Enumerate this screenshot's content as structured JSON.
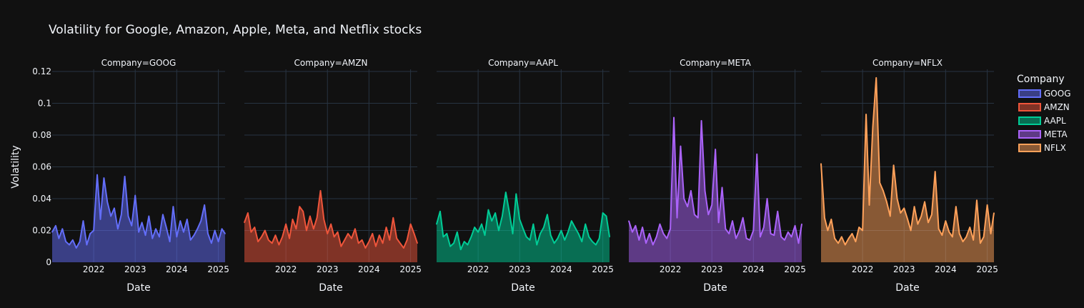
{
  "chart_data": {
    "type": "area",
    "title": "Volatility for Google, Amazon, Apple, Meta, and Netflix stocks",
    "xlabel": "Date",
    "ylabel": "Volatility",
    "facet_prefix": "Company=",
    "legend_title": "Company",
    "legend_position": "right",
    "grid": true,
    "ylim": [
      0,
      0.12
    ],
    "yticks": [
      0,
      0.02,
      0.04,
      0.06,
      0.08,
      0.1,
      0.12
    ],
    "ytick_labels": [
      "0",
      "0.02",
      "0.04",
      "0.06",
      "0.08",
      "0.1",
      "0.12"
    ],
    "xlim": [
      "2021-01-01",
      "2025-03-01"
    ],
    "xticks": [
      "2022-01-01",
      "2023-01-01",
      "2024-01-01",
      "2025-01-01"
    ],
    "xtick_labels": [
      "2022",
      "2023",
      "2024",
      "2025"
    ],
    "series": [
      {
        "name": "GOOG",
        "color": "#636efa",
        "points": [
          [
            "2021-01-01",
            0.019
          ],
          [
            "2021-02-01",
            0.023
          ],
          [
            "2021-03-01",
            0.015
          ],
          [
            "2021-04-01",
            0.021
          ],
          [
            "2021-05-01",
            0.013
          ],
          [
            "2021-06-01",
            0.011
          ],
          [
            "2021-07-01",
            0.014
          ],
          [
            "2021-08-01",
            0.009
          ],
          [
            "2021-09-01",
            0.013
          ],
          [
            "2021-10-01",
            0.026
          ],
          [
            "2021-11-01",
            0.011
          ],
          [
            "2021-12-01",
            0.018
          ],
          [
            "2022-01-01",
            0.02
          ],
          [
            "2022-02-01",
            0.055
          ],
          [
            "2022-03-01",
            0.027
          ],
          [
            "2022-04-01",
            0.053
          ],
          [
            "2022-05-01",
            0.038
          ],
          [
            "2022-06-01",
            0.029
          ],
          [
            "2022-07-01",
            0.034
          ],
          [
            "2022-08-01",
            0.021
          ],
          [
            "2022-09-01",
            0.03
          ],
          [
            "2022-10-01",
            0.054
          ],
          [
            "2022-11-01",
            0.029
          ],
          [
            "2022-12-01",
            0.023
          ],
          [
            "2023-01-01",
            0.042
          ],
          [
            "2023-02-01",
            0.019
          ],
          [
            "2023-03-01",
            0.025
          ],
          [
            "2023-04-01",
            0.017
          ],
          [
            "2023-05-01",
            0.029
          ],
          [
            "2023-06-01",
            0.015
          ],
          [
            "2023-07-01",
            0.021
          ],
          [
            "2023-08-01",
            0.016
          ],
          [
            "2023-09-01",
            0.03
          ],
          [
            "2023-10-01",
            0.022
          ],
          [
            "2023-11-01",
            0.013
          ],
          [
            "2023-12-01",
            0.035
          ],
          [
            "2024-01-01",
            0.016
          ],
          [
            "2024-02-01",
            0.026
          ],
          [
            "2024-03-01",
            0.019
          ],
          [
            "2024-04-01",
            0.027
          ],
          [
            "2024-05-01",
            0.014
          ],
          [
            "2024-06-01",
            0.017
          ],
          [
            "2024-07-01",
            0.021
          ],
          [
            "2024-08-01",
            0.026
          ],
          [
            "2024-09-01",
            0.036
          ],
          [
            "2024-10-01",
            0.018
          ],
          [
            "2024-11-01",
            0.012
          ],
          [
            "2024-12-01",
            0.02
          ],
          [
            "2025-01-01",
            0.013
          ],
          [
            "2025-02-01",
            0.021
          ],
          [
            "2025-03-01",
            0.018
          ]
        ]
      },
      {
        "name": "AMZN",
        "color": "#ef553b",
        "points": [
          [
            "2021-01-01",
            0.025
          ],
          [
            "2021-02-01",
            0.031
          ],
          [
            "2021-03-01",
            0.019
          ],
          [
            "2021-04-01",
            0.022
          ],
          [
            "2021-05-01",
            0.013
          ],
          [
            "2021-06-01",
            0.016
          ],
          [
            "2021-07-01",
            0.02
          ],
          [
            "2021-08-01",
            0.014
          ],
          [
            "2021-09-01",
            0.012
          ],
          [
            "2021-10-01",
            0.017
          ],
          [
            "2021-11-01",
            0.011
          ],
          [
            "2021-12-01",
            0.016
          ],
          [
            "2022-01-01",
            0.024
          ],
          [
            "2022-02-01",
            0.015
          ],
          [
            "2022-03-01",
            0.027
          ],
          [
            "2022-04-01",
            0.021
          ],
          [
            "2022-05-01",
            0.035
          ],
          [
            "2022-06-01",
            0.032
          ],
          [
            "2022-07-01",
            0.02
          ],
          [
            "2022-08-01",
            0.029
          ],
          [
            "2022-09-01",
            0.021
          ],
          [
            "2022-10-01",
            0.028
          ],
          [
            "2022-11-01",
            0.045
          ],
          [
            "2022-12-01",
            0.027
          ],
          [
            "2023-01-01",
            0.018
          ],
          [
            "2023-02-01",
            0.024
          ],
          [
            "2023-03-01",
            0.016
          ],
          [
            "2023-04-01",
            0.019
          ],
          [
            "2023-05-01",
            0.01
          ],
          [
            "2023-06-01",
            0.014
          ],
          [
            "2023-07-01",
            0.018
          ],
          [
            "2023-08-01",
            0.015
          ],
          [
            "2023-09-01",
            0.021
          ],
          [
            "2023-10-01",
            0.012
          ],
          [
            "2023-11-01",
            0.014
          ],
          [
            "2023-12-01",
            0.009
          ],
          [
            "2024-01-01",
            0.013
          ],
          [
            "2024-02-01",
            0.018
          ],
          [
            "2024-03-01",
            0.01
          ],
          [
            "2024-04-01",
            0.017
          ],
          [
            "2024-05-01",
            0.012
          ],
          [
            "2024-06-01",
            0.022
          ],
          [
            "2024-07-01",
            0.014
          ],
          [
            "2024-08-01",
            0.028
          ],
          [
            "2024-09-01",
            0.015
          ],
          [
            "2024-10-01",
            0.012
          ],
          [
            "2024-11-01",
            0.009
          ],
          [
            "2024-12-01",
            0.014
          ],
          [
            "2025-01-01",
            0.024
          ],
          [
            "2025-02-01",
            0.018
          ],
          [
            "2025-03-01",
            0.012
          ]
        ]
      },
      {
        "name": "AAPL",
        "color": "#00cc96",
        "points": [
          [
            "2021-01-01",
            0.024
          ],
          [
            "2021-02-01",
            0.032
          ],
          [
            "2021-03-01",
            0.016
          ],
          [
            "2021-04-01",
            0.018
          ],
          [
            "2021-05-01",
            0.01
          ],
          [
            "2021-06-01",
            0.012
          ],
          [
            "2021-07-01",
            0.019
          ],
          [
            "2021-08-01",
            0.008
          ],
          [
            "2021-09-01",
            0.013
          ],
          [
            "2021-10-01",
            0.011
          ],
          [
            "2021-11-01",
            0.016
          ],
          [
            "2021-12-01",
            0.022
          ],
          [
            "2022-01-01",
            0.019
          ],
          [
            "2022-02-01",
            0.024
          ],
          [
            "2022-03-01",
            0.017
          ],
          [
            "2022-04-01",
            0.033
          ],
          [
            "2022-05-01",
            0.026
          ],
          [
            "2022-06-01",
            0.031
          ],
          [
            "2022-07-01",
            0.02
          ],
          [
            "2022-08-01",
            0.029
          ],
          [
            "2022-09-01",
            0.044
          ],
          [
            "2022-10-01",
            0.032
          ],
          [
            "2022-11-01",
            0.018
          ],
          [
            "2022-12-01",
            0.043
          ],
          [
            "2023-01-01",
            0.027
          ],
          [
            "2023-02-01",
            0.021
          ],
          [
            "2023-03-01",
            0.016
          ],
          [
            "2023-04-01",
            0.014
          ],
          [
            "2023-05-01",
            0.024
          ],
          [
            "2023-06-01",
            0.011
          ],
          [
            "2023-07-01",
            0.018
          ],
          [
            "2023-08-01",
            0.022
          ],
          [
            "2023-09-01",
            0.03
          ],
          [
            "2023-10-01",
            0.017
          ],
          [
            "2023-11-01",
            0.012
          ],
          [
            "2023-12-01",
            0.015
          ],
          [
            "2024-01-01",
            0.02
          ],
          [
            "2024-02-01",
            0.014
          ],
          [
            "2024-03-01",
            0.019
          ],
          [
            "2024-04-01",
            0.026
          ],
          [
            "2024-05-01",
            0.022
          ],
          [
            "2024-06-01",
            0.018
          ],
          [
            "2024-07-01",
            0.013
          ],
          [
            "2024-08-01",
            0.024
          ],
          [
            "2024-09-01",
            0.016
          ],
          [
            "2024-10-01",
            0.013
          ],
          [
            "2024-11-01",
            0.011
          ],
          [
            "2024-12-01",
            0.015
          ],
          [
            "2025-01-01",
            0.031
          ],
          [
            "2025-02-01",
            0.029
          ],
          [
            "2025-03-01",
            0.016
          ]
        ]
      },
      {
        "name": "META",
        "color": "#ab63fa",
        "points": [
          [
            "2021-01-01",
            0.026
          ],
          [
            "2021-02-01",
            0.019
          ],
          [
            "2021-03-01",
            0.023
          ],
          [
            "2021-04-01",
            0.014
          ],
          [
            "2021-05-01",
            0.022
          ],
          [
            "2021-06-01",
            0.012
          ],
          [
            "2021-07-01",
            0.018
          ],
          [
            "2021-08-01",
            0.011
          ],
          [
            "2021-09-01",
            0.016
          ],
          [
            "2021-10-01",
            0.024
          ],
          [
            "2021-11-01",
            0.018
          ],
          [
            "2021-12-01",
            0.015
          ],
          [
            "2022-01-01",
            0.021
          ],
          [
            "2022-02-01",
            0.091
          ],
          [
            "2022-03-01",
            0.028
          ],
          [
            "2022-04-01",
            0.073
          ],
          [
            "2022-05-01",
            0.04
          ],
          [
            "2022-06-01",
            0.035
          ],
          [
            "2022-07-01",
            0.045
          ],
          [
            "2022-08-01",
            0.03
          ],
          [
            "2022-09-01",
            0.028
          ],
          [
            "2022-10-01",
            0.089
          ],
          [
            "2022-11-01",
            0.045
          ],
          [
            "2022-12-01",
            0.03
          ],
          [
            "2023-01-01",
            0.036
          ],
          [
            "2023-02-01",
            0.071
          ],
          [
            "2023-03-01",
            0.025
          ],
          [
            "2023-04-01",
            0.047
          ],
          [
            "2023-05-01",
            0.021
          ],
          [
            "2023-06-01",
            0.018
          ],
          [
            "2023-07-01",
            0.026
          ],
          [
            "2023-08-01",
            0.015
          ],
          [
            "2023-09-01",
            0.02
          ],
          [
            "2023-10-01",
            0.028
          ],
          [
            "2023-11-01",
            0.015
          ],
          [
            "2023-12-01",
            0.014
          ],
          [
            "2024-01-01",
            0.02
          ],
          [
            "2024-02-01",
            0.068
          ],
          [
            "2024-03-01",
            0.016
          ],
          [
            "2024-04-01",
            0.022
          ],
          [
            "2024-05-01",
            0.04
          ],
          [
            "2024-06-01",
            0.018
          ],
          [
            "2024-07-01",
            0.017
          ],
          [
            "2024-08-01",
            0.032
          ],
          [
            "2024-09-01",
            0.016
          ],
          [
            "2024-10-01",
            0.014
          ],
          [
            "2024-11-01",
            0.019
          ],
          [
            "2024-12-01",
            0.016
          ],
          [
            "2025-01-01",
            0.023
          ],
          [
            "2025-02-01",
            0.012
          ],
          [
            "2025-03-01",
            0.024
          ]
        ]
      },
      {
        "name": "NFLX",
        "color": "#ffa15a",
        "points": [
          [
            "2021-01-01",
            0.062
          ],
          [
            "2021-02-01",
            0.028
          ],
          [
            "2021-03-01",
            0.02
          ],
          [
            "2021-04-01",
            0.027
          ],
          [
            "2021-05-01",
            0.015
          ],
          [
            "2021-06-01",
            0.012
          ],
          [
            "2021-07-01",
            0.016
          ],
          [
            "2021-08-01",
            0.011
          ],
          [
            "2021-09-01",
            0.015
          ],
          [
            "2021-10-01",
            0.018
          ],
          [
            "2021-11-01",
            0.013
          ],
          [
            "2021-12-01",
            0.022
          ],
          [
            "2022-01-01",
            0.02
          ],
          [
            "2022-02-01",
            0.093
          ],
          [
            "2022-03-01",
            0.036
          ],
          [
            "2022-04-01",
            0.085
          ],
          [
            "2022-05-01",
            0.116
          ],
          [
            "2022-06-01",
            0.05
          ],
          [
            "2022-07-01",
            0.045
          ],
          [
            "2022-08-01",
            0.038
          ],
          [
            "2022-09-01",
            0.029
          ],
          [
            "2022-10-01",
            0.061
          ],
          [
            "2022-11-01",
            0.04
          ],
          [
            "2022-12-01",
            0.031
          ],
          [
            "2023-01-01",
            0.034
          ],
          [
            "2023-02-01",
            0.027
          ],
          [
            "2023-03-01",
            0.02
          ],
          [
            "2023-04-01",
            0.035
          ],
          [
            "2023-05-01",
            0.024
          ],
          [
            "2023-06-01",
            0.029
          ],
          [
            "2023-07-01",
            0.038
          ],
          [
            "2023-08-01",
            0.025
          ],
          [
            "2023-09-01",
            0.03
          ],
          [
            "2023-10-01",
            0.057
          ],
          [
            "2023-11-01",
            0.021
          ],
          [
            "2023-12-01",
            0.017
          ],
          [
            "2024-01-01",
            0.026
          ],
          [
            "2024-02-01",
            0.019
          ],
          [
            "2024-03-01",
            0.016
          ],
          [
            "2024-04-01",
            0.035
          ],
          [
            "2024-05-01",
            0.018
          ],
          [
            "2024-06-01",
            0.013
          ],
          [
            "2024-07-01",
            0.016
          ],
          [
            "2024-08-01",
            0.022
          ],
          [
            "2024-09-01",
            0.014
          ],
          [
            "2024-10-01",
            0.039
          ],
          [
            "2024-11-01",
            0.012
          ],
          [
            "2024-12-01",
            0.016
          ],
          [
            "2025-01-01",
            0.036
          ],
          [
            "2025-02-01",
            0.018
          ],
          [
            "2025-03-01",
            0.031
          ]
        ]
      }
    ]
  }
}
